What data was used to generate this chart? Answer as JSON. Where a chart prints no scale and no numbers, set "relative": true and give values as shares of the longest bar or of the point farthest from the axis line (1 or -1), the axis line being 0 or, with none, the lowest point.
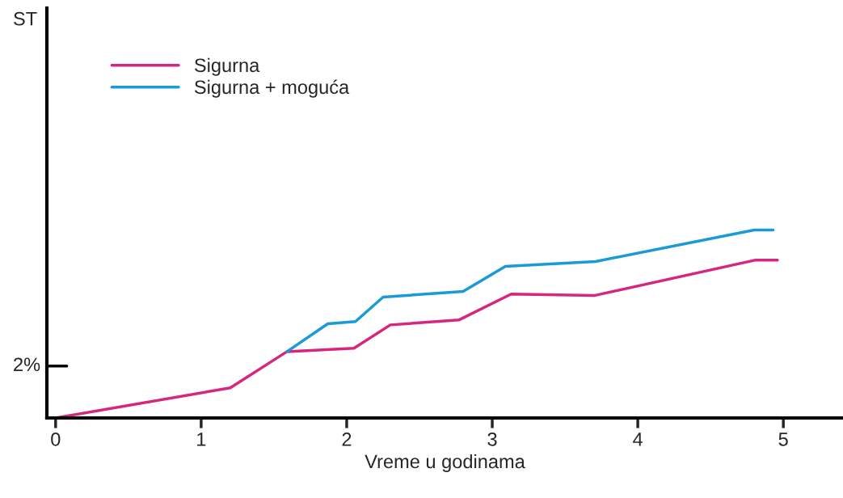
{
  "chart_data": {
    "type": "line",
    "relative": true,
    "xlabel": "Vreme u godinama",
    "xlim": [
      -0.06,
      5.41
    ],
    "xticks": [
      0,
      1,
      2,
      3,
      4,
      5
    ],
    "annotations": [
      "2%",
      "ST"
    ],
    "grid": false,
    "legend": "top left",
    "marker": "none",
    "line_style": "solid",
    "series": [
      {
        "name": "Sigurna",
        "color": "#d6267f",
        "x": [
          0,
          1.2,
          1.59,
          2.05,
          2.3,
          2.77,
          3.13,
          3.7,
          4.81,
          4.96
        ],
        "values": [
          0,
          0.16,
          0.353,
          0.371,
          0.495,
          0.521,
          0.659,
          0.651,
          0.84,
          0.84
        ]
      },
      {
        "name": "Sigurna + moguća",
        "color": "#1a9ad6",
        "x": [
          1.59,
          1.87,
          2.06,
          2.25,
          2.8,
          3.09,
          3.71,
          4.8,
          4.93
        ],
        "values": [
          0.353,
          0.501,
          0.513,
          0.643,
          0.673,
          0.806,
          0.832,
          1,
          1
        ]
      }
    ]
  }
}
